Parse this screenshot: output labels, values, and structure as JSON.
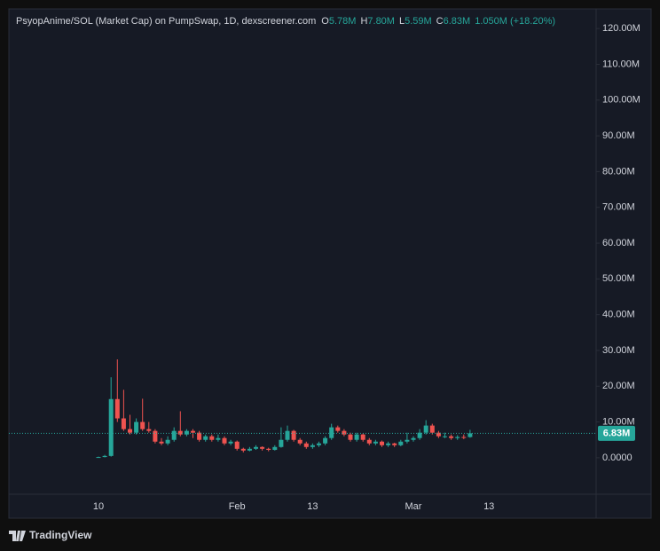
{
  "chart_data": {
    "type": "candlestick",
    "title": "PsyopAnime/SOL (Market Cap) on PumpSwap, 1D, dexscreener.com",
    "legend": [
      {
        "key": "O",
        "text": "5.78M"
      },
      {
        "key": "H",
        "text": "7.80M"
      },
      {
        "key": "L",
        "text": "5.59M"
      },
      {
        "key": "C",
        "text": "6.83M"
      },
      {
        "key": null,
        "text": "1.050M (+18.20%)"
      }
    ],
    "last_price_label": "6.83M",
    "up_color": "#26a69a",
    "down_color": "#ef5350",
    "categories": [
      "10",
      null,
      null,
      null,
      null,
      null,
      null,
      null,
      null,
      null,
      null,
      null,
      null,
      null,
      null,
      null,
      null,
      null,
      null,
      null,
      null,
      null,
      "Feb",
      null,
      null,
      null,
      null,
      null,
      null,
      null,
      null,
      null,
      null,
      null,
      "13",
      null,
      null,
      null,
      null,
      null,
      null,
      null,
      null,
      null,
      null,
      null,
      null,
      null,
      null,
      null,
      "Mar",
      null,
      null,
      null,
      null,
      null,
      null,
      null,
      null,
      null,
      null,
      null,
      "13"
    ],
    "open": [
      0.05,
      0.2,
      0.5,
      16.4,
      11,
      8,
      7,
      10,
      8,
      7.5,
      4.5,
      4,
      5,
      7.5,
      6.5,
      7.5,
      7,
      5,
      6,
      5,
      5.5,
      4,
      4.5,
      2.5,
      2,
      2.5,
      3,
      2.5,
      2.2,
      3,
      5,
      7.5,
      5,
      4,
      3,
      3.5,
      4,
      5.5,
      8.5,
      7.5,
      6.5,
      5,
      6.5,
      5,
      4,
      4.5,
      3.5,
      4,
      3.5,
      4.5,
      5,
      5.5,
      7,
      9,
      7,
      6,
      6,
      5.5,
      5.8,
      5.78,
      null,
      null,
      null
    ],
    "high": [
      0.3,
      0.8,
      22.5,
      27.5,
      19,
      12,
      11,
      16.5,
      10,
      8,
      5.5,
      6,
      8.5,
      13,
      8,
      8,
      7.5,
      6.5,
      6.5,
      6.5,
      6,
      5,
      4.8,
      2.8,
      3,
      3.5,
      3.2,
      2.8,
      3.5,
      8.5,
      9,
      7.8,
      5.5,
      4.5,
      4,
      4.5,
      6,
      9.5,
      9,
      8,
      7,
      7,
      6.8,
      5.5,
      5,
      4.8,
      4.5,
      4.2,
      5,
      7,
      6,
      8,
      10.5,
      9.5,
      7.5,
      7,
      6.5,
      6.3,
      6.5,
      7.8,
      null,
      null,
      null
    ],
    "low": [
      0,
      0.1,
      0.3,
      10,
      7.5,
      6.5,
      6.5,
      7.5,
      7,
      4,
      3.5,
      3.5,
      4.5,
      6,
      6,
      5.5,
      4.5,
      4.5,
      4.5,
      4.5,
      3.5,
      3.5,
      2,
      1.5,
      1.8,
      2.2,
      2,
      1.8,
      2,
      2.8,
      4.5,
      4.5,
      3.5,
      2.5,
      2.5,
      3,
      3.5,
      5,
      7,
      6,
      4.5,
      4.5,
      4.5,
      3.5,
      3.5,
      3,
      3,
      3,
      3.2,
      4,
      4.5,
      5,
      6.5,
      6.5,
      5.5,
      5.5,
      5,
      5,
      5.2,
      5.59,
      null,
      null,
      null
    ],
    "close": [
      0.2,
      0.5,
      16.4,
      11,
      8,
      7,
      10,
      8,
      7.5,
      4.5,
      4,
      5,
      7.5,
      6.5,
      7.5,
      7,
      5,
      6,
      5,
      5.5,
      4,
      4.5,
      2.5,
      2,
      2.5,
      3,
      2.5,
      2.2,
      3,
      5,
      7.5,
      5,
      4,
      3,
      3.5,
      4,
      5.5,
      8.5,
      7.5,
      6.5,
      5,
      6.5,
      5,
      4,
      4.5,
      3.5,
      4,
      3.5,
      4.5,
      5,
      5.5,
      7,
      9,
      7,
      6,
      6,
      5.5,
      5.8,
      5.78,
      6.83,
      null,
      null,
      null
    ],
    "ylim": [
      -10.2,
      125.5
    ],
    "yticks": [
      {
        "value": 0,
        "label": "0.0000"
      },
      {
        "value": 10,
        "label": "10.00M"
      },
      {
        "value": 20,
        "label": "20.00M"
      },
      {
        "value": 30,
        "label": "30.00M"
      },
      {
        "value": 40,
        "label": "40.00M"
      },
      {
        "value": 50,
        "label": "50.00M"
      },
      {
        "value": 60,
        "label": "60.00M"
      },
      {
        "value": 70,
        "label": "70.00M"
      },
      {
        "value": 80,
        "label": "80.00M"
      },
      {
        "value": 90,
        "label": "90.00M"
      },
      {
        "value": 100,
        "label": "100.00M"
      },
      {
        "value": 110,
        "label": "110.00M"
      },
      {
        "value": 120,
        "label": "120.00M"
      }
    ]
  },
  "branding": "TradingView"
}
